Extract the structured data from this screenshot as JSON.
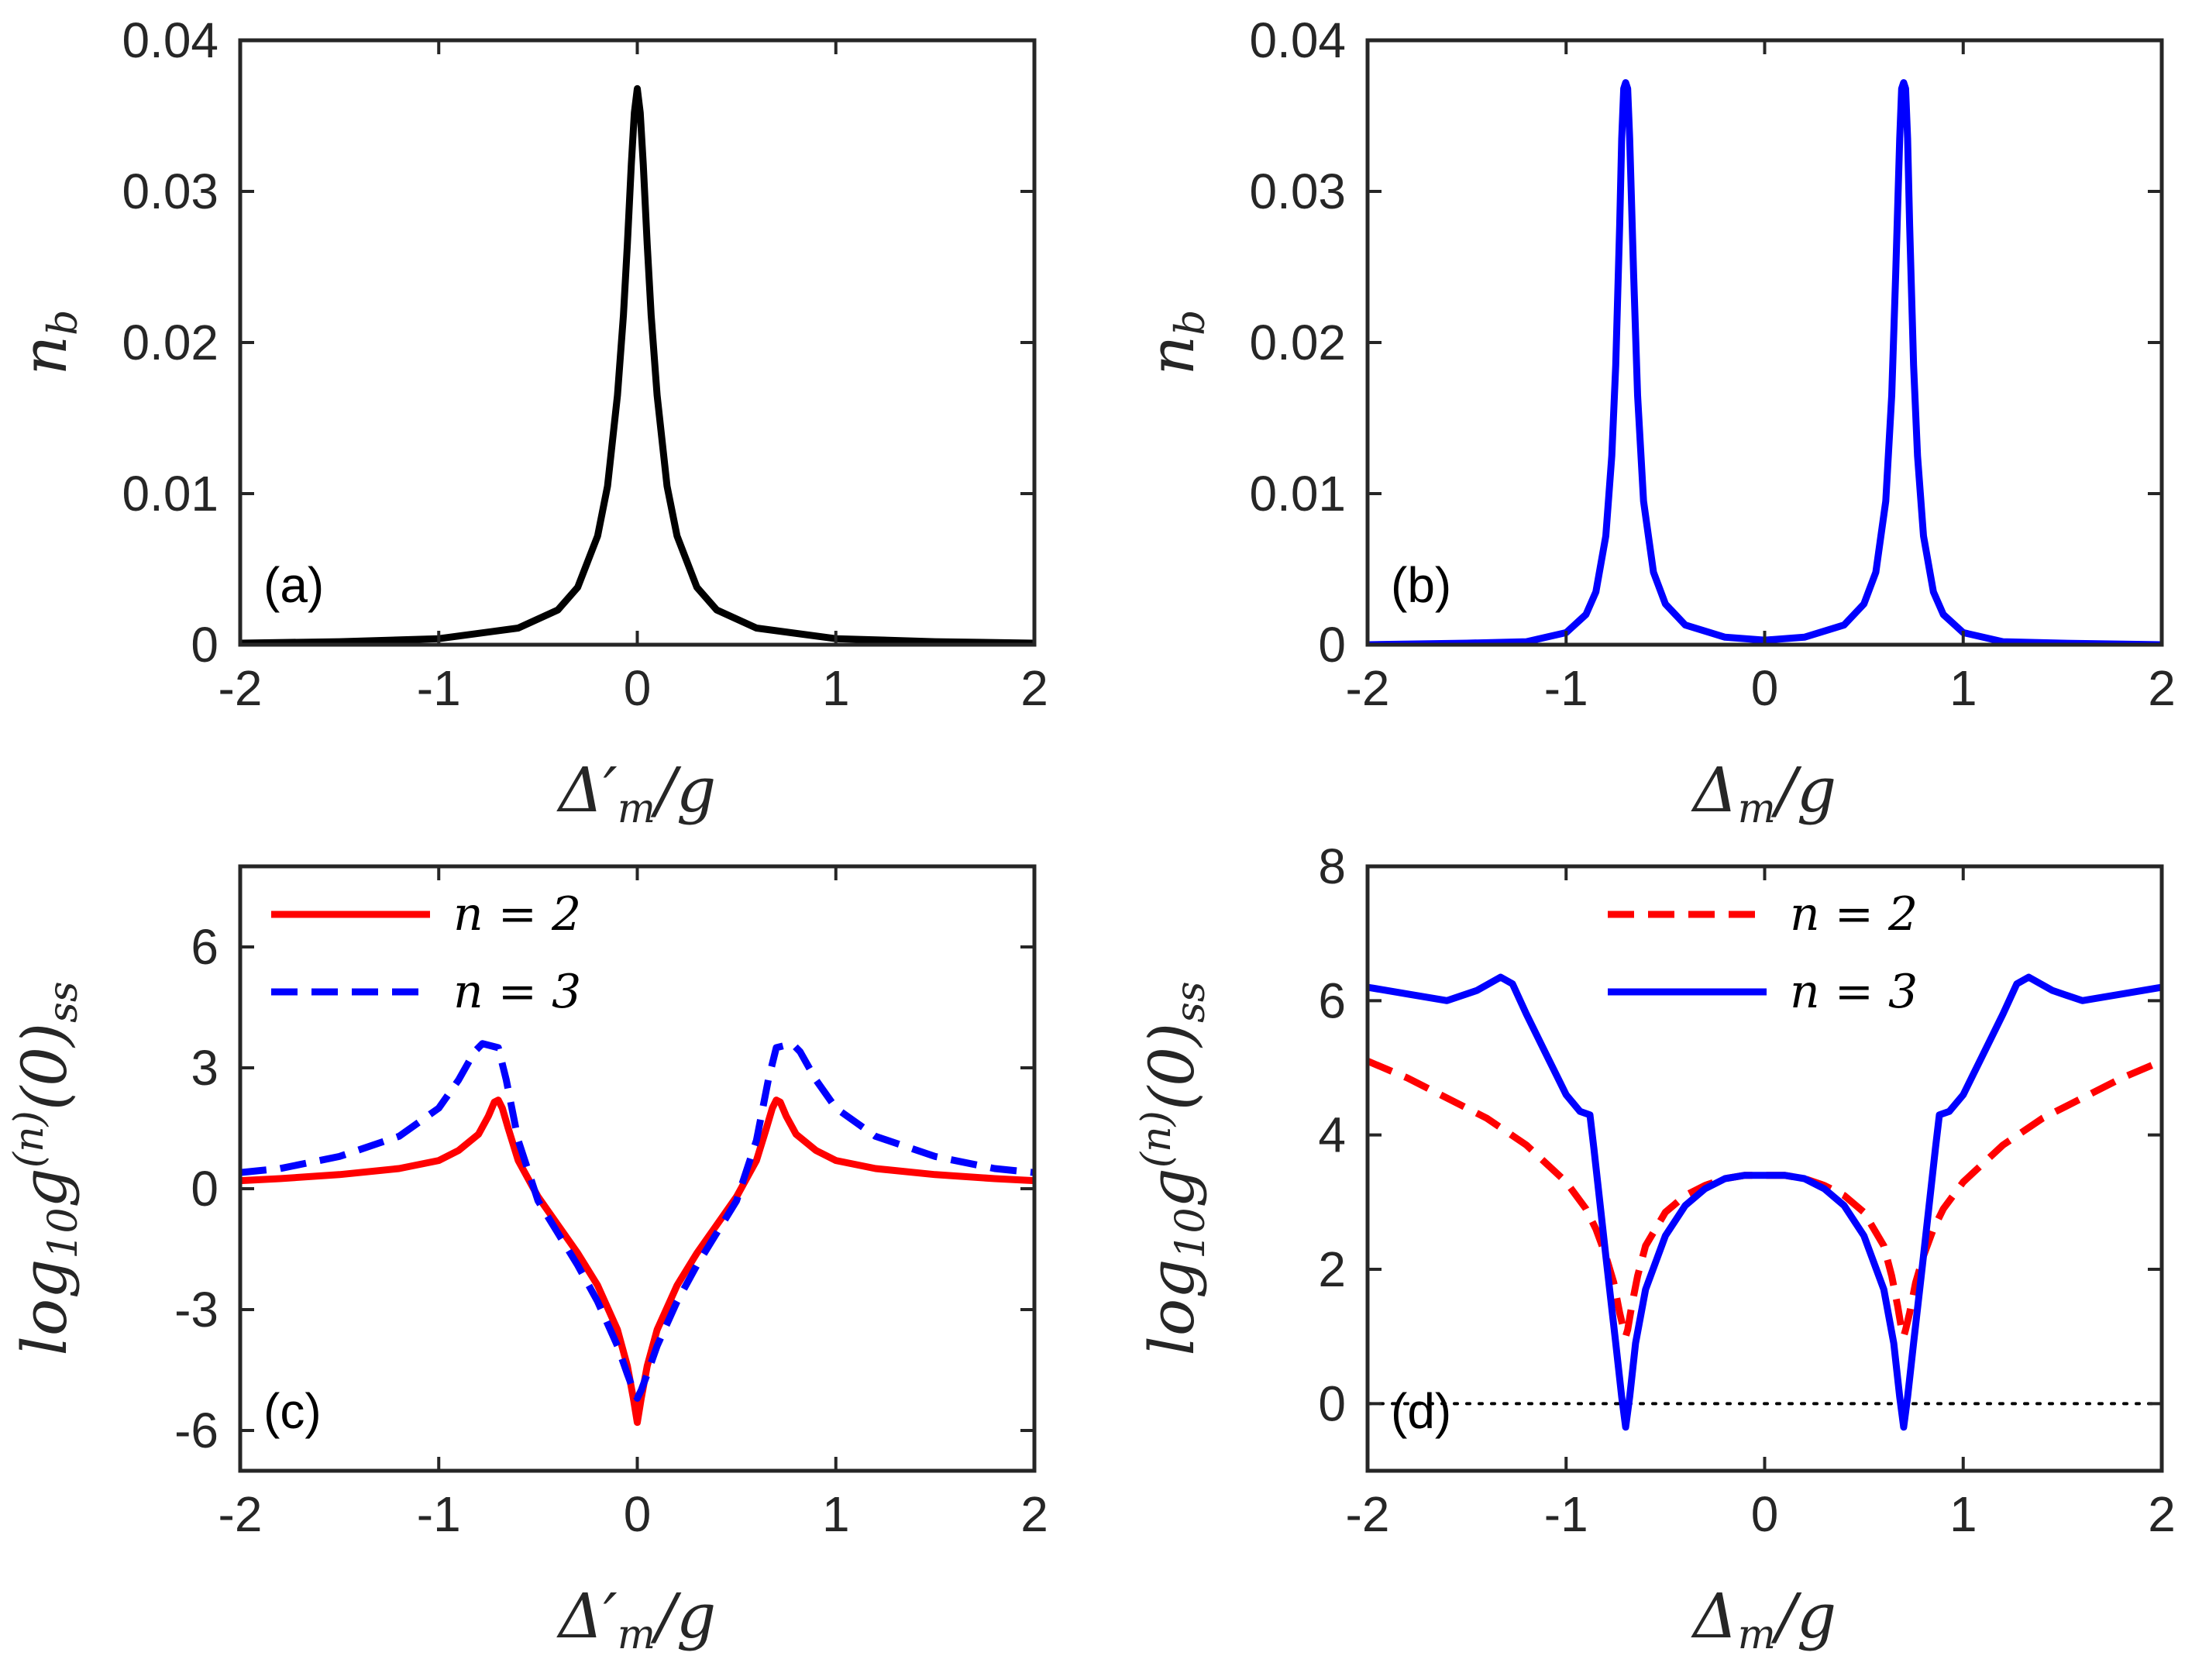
{
  "chart_data": [
    {
      "id": "a",
      "type": "line",
      "panel_label": "(a)",
      "xlabel_main": "Δ′",
      "xlabel_sub": "m",
      "xlabel_tail": "/g",
      "ylabel_main": "n",
      "ylabel_sub": "b",
      "xlim": [
        -2,
        2
      ],
      "ylim": [
        0,
        0.04
      ],
      "xticks": [
        -2,
        -1,
        0,
        1,
        2
      ],
      "xtick_labels": [
        "-2",
        "-1",
        "0",
        "1",
        "2"
      ],
      "yticks": [
        0,
        0.01,
        0.02,
        0.03,
        0.04
      ],
      "ytick_labels": [
        "0",
        "0.01",
        "0.02",
        "0.03",
        "0.04"
      ],
      "legend": null,
      "series": [
        {
          "name": "n_b",
          "color": "#000000",
          "dash": "solid",
          "x": [
            -2,
            -1.5,
            -1,
            -0.6,
            -0.4,
            -0.3,
            -0.2,
            -0.15,
            -0.1,
            -0.07,
            -0.05,
            -0.03,
            -0.015,
            0,
            0.015,
            0.03,
            0.05,
            0.07,
            0.1,
            0.15,
            0.2,
            0.3,
            0.4,
            0.6,
            1,
            1.5,
            2
          ],
          "y": [
            0.0001,
            0.0002,
            0.0004,
            0.0011,
            0.0023,
            0.0038,
            0.0072,
            0.0105,
            0.0165,
            0.0218,
            0.0265,
            0.0318,
            0.0352,
            0.0368,
            0.0352,
            0.0318,
            0.0265,
            0.0218,
            0.0165,
            0.0105,
            0.0072,
            0.0038,
            0.0023,
            0.0011,
            0.0004,
            0.0002,
            0.0001
          ]
        }
      ]
    },
    {
      "id": "b",
      "type": "line",
      "panel_label": "(b)",
      "xlabel_main": "Δ",
      "xlabel_sub": "m",
      "xlabel_tail": "/g",
      "ylabel_main": "n",
      "ylabel_sub": "b",
      "xlim": [
        -2,
        2
      ],
      "ylim": [
        0,
        0.04
      ],
      "xticks": [
        -2,
        -1,
        0,
        1,
        2
      ],
      "xtick_labels": [
        "-2",
        "-1",
        "0",
        "1",
        "2"
      ],
      "yticks": [
        0,
        0.01,
        0.02,
        0.03,
        0.04
      ],
      "ytick_labels": [
        "0",
        "0.01",
        "0.02",
        "0.03",
        "0.04"
      ],
      "legend": null,
      "series": [
        {
          "name": "n_b",
          "color": "#0000ff",
          "dash": "solid",
          "x": [
            -2,
            -1.5,
            -1.2,
            -1,
            -0.9,
            -0.85,
            -0.8,
            -0.77,
            -0.75,
            -0.73,
            -0.72,
            -0.71,
            -0.7,
            -0.69,
            -0.68,
            -0.66,
            -0.64,
            -0.61,
            -0.56,
            -0.5,
            -0.4,
            -0.2,
            0,
            0.2,
            0.4,
            0.5,
            0.56,
            0.61,
            0.64,
            0.66,
            0.68,
            0.69,
            0.7,
            0.71,
            0.72,
            0.73,
            0.75,
            0.77,
            0.8,
            0.85,
            0.9,
            1,
            1.2,
            1.5,
            2
          ],
          "y": [
            0.0,
            0.0001,
            0.0002,
            0.0008,
            0.002,
            0.0035,
            0.0072,
            0.0125,
            0.0185,
            0.0278,
            0.0335,
            0.0368,
            0.0372,
            0.0368,
            0.0335,
            0.0245,
            0.0165,
            0.0095,
            0.0048,
            0.0027,
            0.0013,
            0.0005,
            0.0003,
            0.0005,
            0.0013,
            0.0027,
            0.0048,
            0.0095,
            0.0165,
            0.0245,
            0.0335,
            0.0368,
            0.0372,
            0.0368,
            0.0335,
            0.0278,
            0.0185,
            0.0125,
            0.0072,
            0.0035,
            0.002,
            0.0008,
            0.0002,
            0.0001,
            0.0
          ]
        }
      ]
    },
    {
      "id": "c",
      "type": "line",
      "panel_label": "(c)",
      "xlabel_main": "Δ′",
      "xlabel_sub": "m",
      "xlabel_tail": "/g",
      "ylabel_main": "log",
      "ylabel_sub": "10",
      "ylabel_tail": "g",
      "ylabel_sup": "(n)",
      "ylabel_end": "(0)",
      "ylabel_end_sub": "ss",
      "xlim": [
        -2,
        2
      ],
      "ylim": [
        -7,
        8
      ],
      "xticks": [
        -2,
        -1,
        0,
        1,
        2
      ],
      "xtick_labels": [
        "-2",
        "-1",
        "0",
        "1",
        "2"
      ],
      "yticks": [
        -6,
        -3,
        0,
        3,
        6
      ],
      "ytick_labels": [
        "-6",
        "-3",
        "0",
        "3",
        "6"
      ],
      "legend": {
        "position": "top-left",
        "entries": [
          "n = 2",
          "n = 3"
        ]
      },
      "series": [
        {
          "name": "n = 2",
          "color": "#ff0000",
          "dash": "solid",
          "x": [
            -2,
            -1.8,
            -1.5,
            -1.2,
            -1,
            -0.9,
            -0.8,
            -0.75,
            -0.72,
            -0.7,
            -0.68,
            -0.65,
            -0.6,
            -0.5,
            -0.4,
            -0.3,
            -0.2,
            -0.1,
            -0.05,
            -0.02,
            0,
            0.02,
            0.05,
            0.1,
            0.2,
            0.3,
            0.4,
            0.5,
            0.6,
            0.65,
            0.68,
            0.7,
            0.72,
            0.75,
            0.8,
            0.9,
            1,
            1.2,
            1.5,
            1.8,
            2
          ],
          "y": [
            0.2,
            0.25,
            0.35,
            0.5,
            0.7,
            0.95,
            1.35,
            1.8,
            2.15,
            2.2,
            2.0,
            1.5,
            0.7,
            -0.2,
            -0.9,
            -1.6,
            -2.4,
            -3.5,
            -4.4,
            -5.2,
            -5.8,
            -5.2,
            -4.4,
            -3.5,
            -2.4,
            -1.6,
            -0.9,
            -0.2,
            0.7,
            1.5,
            2.0,
            2.2,
            2.15,
            1.8,
            1.35,
            0.95,
            0.7,
            0.5,
            0.35,
            0.25,
            0.2
          ]
        },
        {
          "name": "n = 3",
          "color": "#0000ff",
          "dash": "dashed",
          "x": [
            -2,
            -1.8,
            -1.5,
            -1.2,
            -1,
            -0.9,
            -0.82,
            -0.78,
            -0.74,
            -0.7,
            -0.66,
            -0.6,
            -0.5,
            -0.4,
            -0.3,
            -0.2,
            -0.1,
            -0.05,
            -0.02,
            0,
            0.02,
            0.05,
            0.1,
            0.2,
            0.3,
            0.4,
            0.5,
            0.6,
            0.66,
            0.7,
            0.74,
            0.78,
            0.82,
            0.9,
            1,
            1.2,
            1.5,
            1.8,
            2
          ],
          "y": [
            0.4,
            0.5,
            0.8,
            1.3,
            2.0,
            2.7,
            3.4,
            3.6,
            3.55,
            3.5,
            2.7,
            1.2,
            -0.3,
            -1.1,
            -1.9,
            -2.8,
            -3.9,
            -4.6,
            -5.0,
            -5.2,
            -5.0,
            -4.6,
            -3.9,
            -2.8,
            -1.9,
            -1.1,
            -0.3,
            1.2,
            2.7,
            3.5,
            3.55,
            3.6,
            3.4,
            2.7,
            2.0,
            1.3,
            0.8,
            0.5,
            0.4
          ]
        }
      ]
    },
    {
      "id": "d",
      "type": "line",
      "panel_label": "(d)",
      "xlabel_main": "Δ",
      "xlabel_sub": "m",
      "xlabel_tail": "/g",
      "ylabel_main": "log",
      "ylabel_sub": "10",
      "ylabel_tail": "g",
      "ylabel_sup": "(n)",
      "ylabel_end": "(0)",
      "ylabel_end_sub": "ss",
      "xlim": [
        -2,
        2
      ],
      "ylim": [
        -1,
        8
      ],
      "xticks": [
        -2,
        -1,
        0,
        1,
        2
      ],
      "xtick_labels": [
        "-2",
        "-1",
        "0",
        "1",
        "2"
      ],
      "yticks": [
        0,
        2,
        4,
        6,
        8
      ],
      "ytick_labels": [
        "0",
        "2",
        "4",
        "6",
        "8"
      ],
      "reference_line": {
        "y": 0,
        "style": "dotted",
        "color": "#000000"
      },
      "legend": {
        "position": "top-center",
        "entries": [
          "n = 2",
          "n = 3"
        ]
      },
      "series": [
        {
          "name": "n = 2",
          "color": "#ff0000",
          "dash": "dashed",
          "x": [
            -2,
            -1.8,
            -1.6,
            -1.4,
            -1.2,
            -1.0,
            -0.9,
            -0.85,
            -0.8,
            -0.76,
            -0.73,
            -0.71,
            -0.7,
            -0.69,
            -0.67,
            -0.64,
            -0.6,
            -0.5,
            -0.4,
            -0.3,
            -0.2,
            -0.1,
            0,
            0.1,
            0.2,
            0.3,
            0.4,
            0.5,
            0.6,
            0.64,
            0.67,
            0.69,
            0.7,
            0.71,
            0.73,
            0.76,
            0.8,
            0.85,
            0.9,
            1.0,
            1.2,
            1.4,
            1.6,
            1.8,
            2
          ],
          "y": [
            5.1,
            4.85,
            4.55,
            4.25,
            3.85,
            3.3,
            2.9,
            2.6,
            2.2,
            1.8,
            1.35,
            1.1,
            1.0,
            1.1,
            1.45,
            1.9,
            2.35,
            2.85,
            3.1,
            3.25,
            3.35,
            3.4,
            3.4,
            3.4,
            3.35,
            3.25,
            3.1,
            2.85,
            2.35,
            1.9,
            1.45,
            1.1,
            1.0,
            1.1,
            1.35,
            1.8,
            2.2,
            2.6,
            2.9,
            3.3,
            3.85,
            4.25,
            4.55,
            4.85,
            5.1
          ]
        },
        {
          "name": "n = 3",
          "color": "#0000ff",
          "dash": "solid",
          "x": [
            -2,
            -1.8,
            -1.6,
            -1.45,
            -1.33,
            -1.27,
            -1.2,
            -1.1,
            -1.0,
            -0.93,
            -0.88,
            -0.86,
            -0.8,
            -0.75,
            -0.72,
            -0.7,
            -0.68,
            -0.65,
            -0.6,
            -0.5,
            -0.4,
            -0.3,
            -0.2,
            -0.1,
            0,
            0.1,
            0.2,
            0.3,
            0.4,
            0.5,
            0.6,
            0.65,
            0.68,
            0.7,
            0.72,
            0.75,
            0.8,
            0.86,
            0.88,
            0.93,
            1.0,
            1.1,
            1.2,
            1.27,
            1.33,
            1.45,
            1.6,
            1.8,
            2
          ],
          "y": [
            6.2,
            6.1,
            6.0,
            6.15,
            6.35,
            6.25,
            5.8,
            5.2,
            4.6,
            4.35,
            4.3,
            3.8,
            2.2,
            0.9,
            0.1,
            -0.35,
            0.1,
            0.9,
            1.7,
            2.5,
            2.95,
            3.2,
            3.35,
            3.4,
            3.4,
            3.4,
            3.35,
            3.2,
            2.95,
            2.5,
            1.7,
            0.9,
            0.1,
            -0.35,
            0.1,
            0.9,
            2.2,
            3.8,
            4.3,
            4.35,
            4.6,
            5.2,
            5.8,
            6.25,
            6.35,
            6.15,
            6.0,
            6.1,
            6.2
          ]
        }
      ]
    }
  ]
}
